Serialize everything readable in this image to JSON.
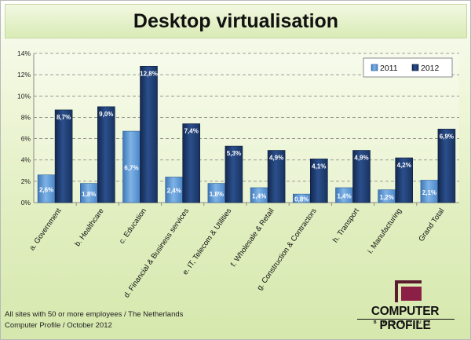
{
  "title": "Desktop virtualisation",
  "footnote": {
    "line1": "All sites with 50 or more employees / The Netherlands",
    "line2": "Computer Profile / October 2012"
  },
  "logo": {
    "brand": "COMPUTER PROFILE",
    "sub": "BENELUX"
  },
  "chart_data": {
    "type": "bar",
    "title": "Desktop virtualisation",
    "xlabel": "",
    "ylabel": "",
    "ylim": [
      0,
      14
    ],
    "yticks": [
      "0%",
      "2%",
      "4%",
      "6%",
      "8%",
      "10%",
      "12%",
      "14%"
    ],
    "grid": true,
    "legend_position": "top-right",
    "categories": [
      "a. Government",
      "b. Healthcare",
      "c. Education",
      "d. Financial & Business services",
      "e. IT, Telecom & Utilities",
      "f. Wholesale & Retail",
      "g. Construction & Contractors",
      "h. Transport",
      "i. Manufacturing",
      "Grand Total"
    ],
    "series": [
      {
        "name": "2011",
        "color": "#5b9bd5",
        "values": [
          2.6,
          1.8,
          6.7,
          2.4,
          1.8,
          1.4,
          0.8,
          1.4,
          1.2,
          2.1
        ],
        "labels": [
          "2,6%",
          "1,8%",
          "6,7%",
          "2,4%",
          "1,8%",
          "1,4%",
          "0,8%",
          "1,4%",
          "1,2%",
          "2,1%"
        ]
      },
      {
        "name": "2012",
        "color": "#1f3d73",
        "values": [
          8.7,
          9.0,
          12.8,
          7.4,
          5.3,
          4.9,
          4.1,
          4.9,
          4.2,
          6.9
        ],
        "labels": [
          "8,7%",
          "9,0%",
          "12,8%",
          "7,4%",
          "5,3%",
          "4,9%",
          "4,1%",
          "4,9%",
          "4,2%",
          "6,9%"
        ]
      }
    ]
  }
}
